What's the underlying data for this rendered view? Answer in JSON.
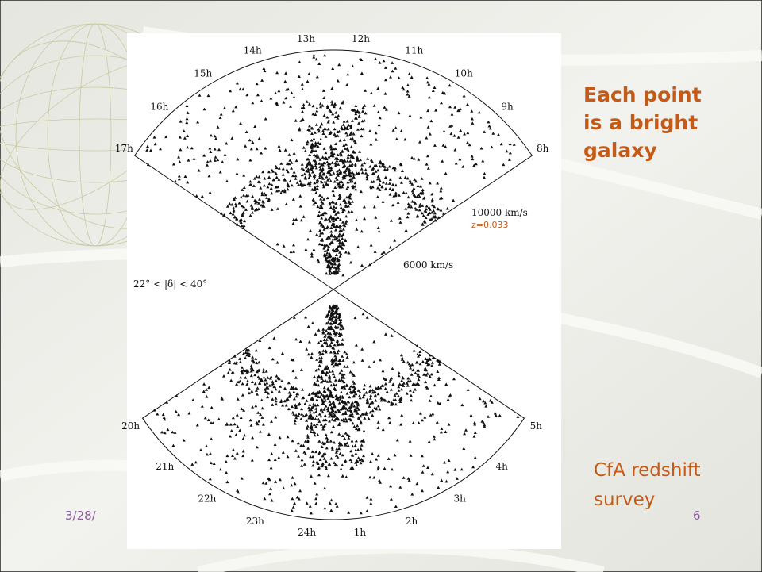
{
  "slide": {
    "title_lines": [
      "Each point",
      "is a bright",
      "galaxy"
    ],
    "caption_lines": [
      "CfA redshift",
      "survey"
    ],
    "date": "3/28/",
    "page_number": "6"
  },
  "figure": {
    "hour_labels_top": [
      "17h",
      "16h",
      "15h",
      "14h",
      "13h",
      "12h",
      "11h",
      "10h",
      "9h",
      "8h"
    ],
    "hour_labels_bottom": [
      "20h",
      "21h",
      "22h",
      "23h",
      "24h",
      "1h",
      "2h",
      "3h",
      "4h",
      "5h"
    ],
    "velocity_outer": "10000 km/s",
    "redshift": "z=0.033",
    "velocity_inner": "6000 km/s",
    "declination_range": "22° < |δ| < 40°"
  }
}
